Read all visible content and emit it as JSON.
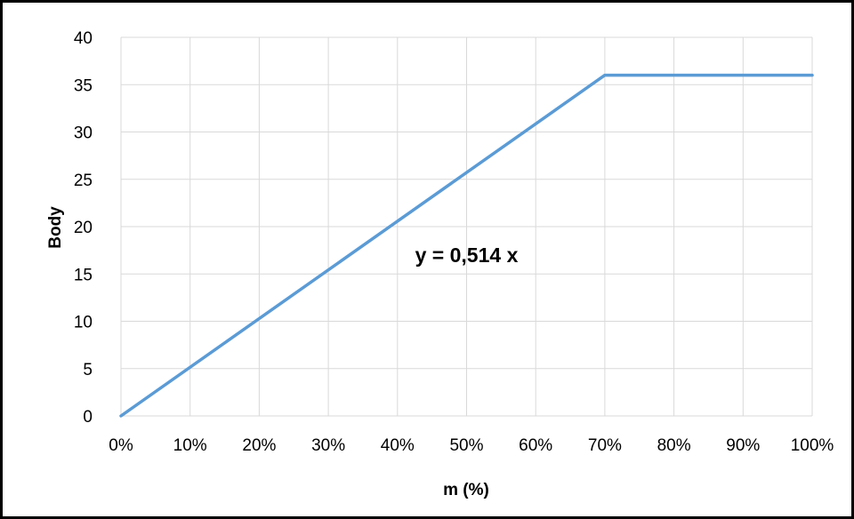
{
  "chart_data": {
    "type": "line",
    "title": "",
    "xlabel": "m (%)",
    "ylabel": "Body",
    "xlim": [
      0,
      100
    ],
    "ylim": [
      0,
      40
    ],
    "x_ticks": [
      "0%",
      "10%",
      "20%",
      "30%",
      "40%",
      "50%",
      "60%",
      "70%",
      "80%",
      "90%",
      "100%"
    ],
    "x_tick_values": [
      0,
      10,
      20,
      30,
      40,
      50,
      60,
      70,
      80,
      90,
      100
    ],
    "y_ticks": [
      "0",
      "5",
      "10",
      "15",
      "20",
      "25",
      "30",
      "35",
      "40"
    ],
    "y_tick_values": [
      0,
      5,
      10,
      15,
      20,
      25,
      30,
      35,
      40
    ],
    "grid": true,
    "legend": "none",
    "series": [
      {
        "color": "#5B9BD5",
        "x": [
          0,
          70,
          100
        ],
        "y": [
          0,
          36,
          36
        ]
      }
    ],
    "annotations": [
      {
        "text": "y = 0,514 x",
        "x": 50,
        "y": 17
      }
    ]
  }
}
